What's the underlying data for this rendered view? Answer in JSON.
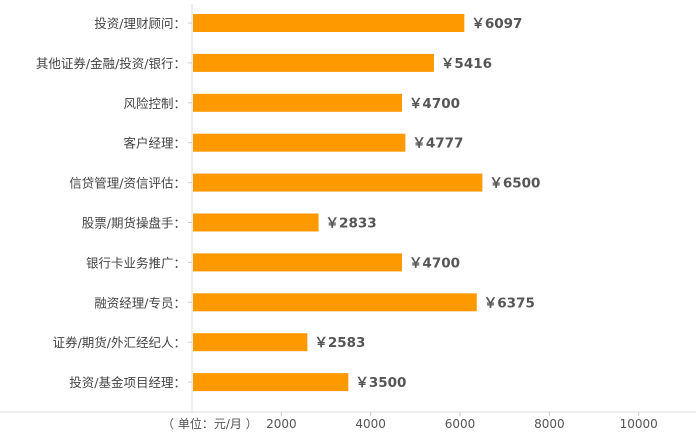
{
  "chart_data": {
    "type": "bar",
    "orientation": "horizontal",
    "categories": [
      "投资/理财顾问：",
      "其他证券/金融/投资/银行：",
      "风险控制：",
      "客户经理：",
      "信贷管理/资信评估：",
      "股票/期货操盘手：",
      "银行卡业务推广：",
      "融资经理/专员：",
      "证券/期货/外汇经纪人：",
      "投资/基金项目经理："
    ],
    "values": [
      6097,
      5416,
      4700,
      4777,
      6500,
      2833,
      4700,
      6375,
      2583,
      3500
    ],
    "value_labels": [
      "￥6097",
      "￥5416",
      "￥4700",
      "￥4777",
      "￥6500",
      "￥2833",
      "￥4700",
      "￥6375",
      "￥2583",
      "￥3500"
    ],
    "xlim": [
      0,
      10000
    ],
    "xticks": [
      2000,
      4000,
      6000,
      8000,
      10000
    ],
    "xtick_labels": [
      "2000",
      "4000",
      "6000",
      "8000",
      "10000"
    ],
    "unit_label": "（ 单位：元/月 ）",
    "bar_color": "#ff9900",
    "grid": false,
    "legend": "none"
  }
}
